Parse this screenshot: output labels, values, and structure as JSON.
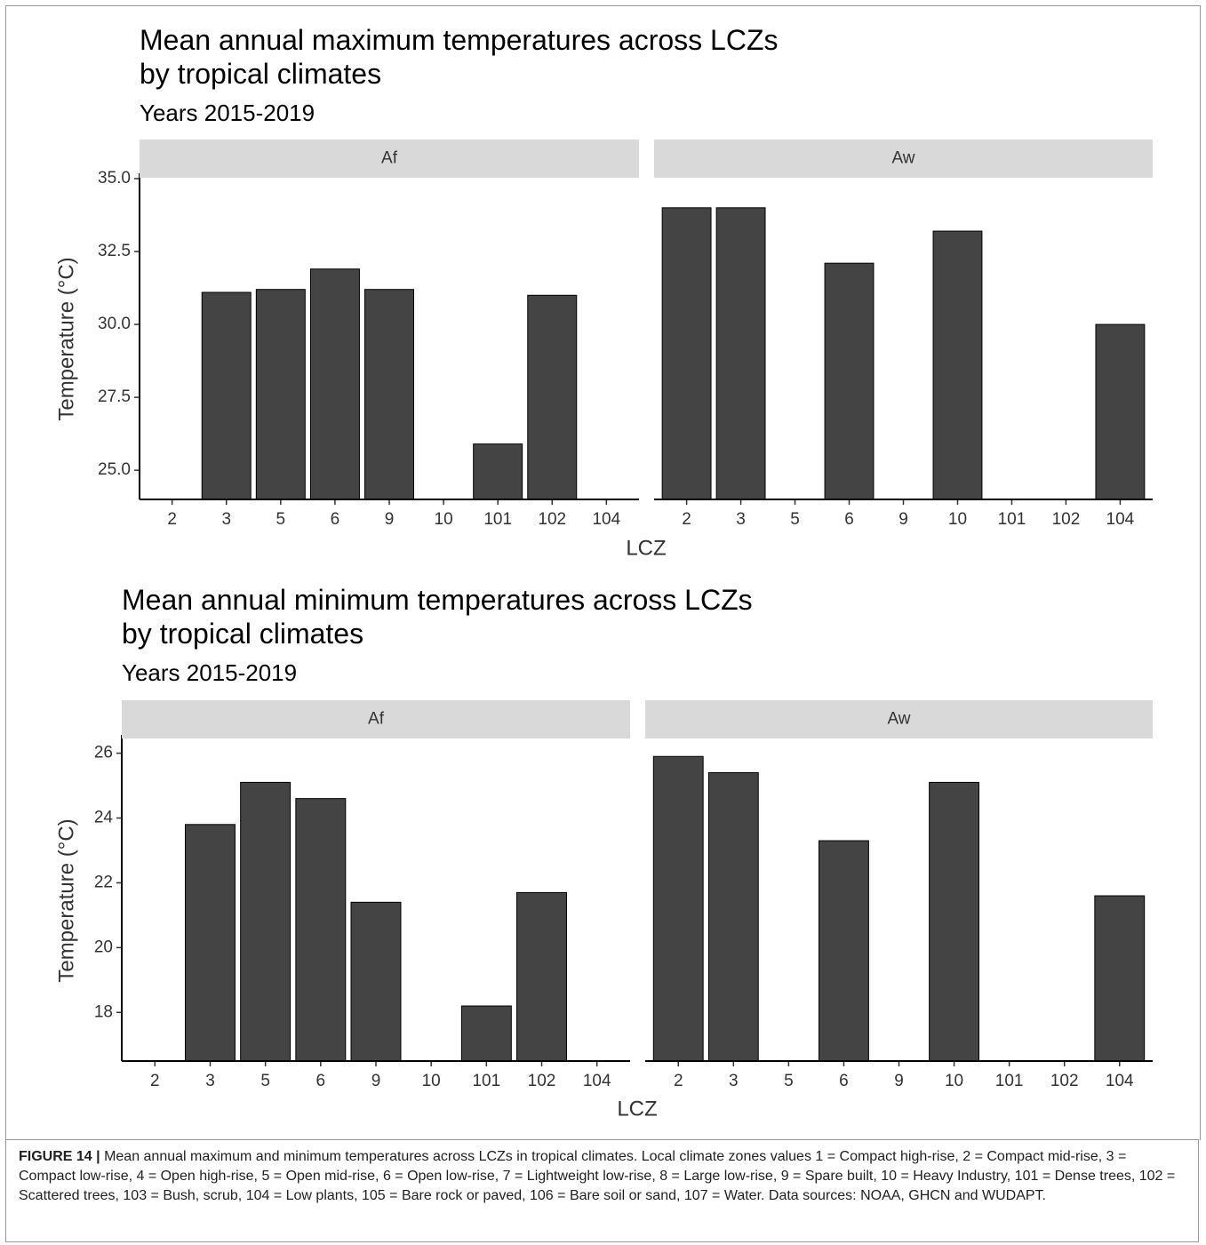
{
  "chart_data": [
    {
      "type": "bar",
      "title": "Mean annual maximum temperatures across LCZs\nby tropical climates",
      "subtitle": "Years 2015-2019",
      "ylabel": "Temperature (°C)",
      "xlabel": "LCZ",
      "color": "#444444",
      "ylim": [
        24,
        35
      ],
      "yticks": [
        {
          "value": 25,
          "label": "25.0"
        },
        27.5,
        {
          "value": 30,
          "label": "30.0"
        },
        32.5,
        {
          "value": 35,
          "label": "35.0"
        }
      ],
      "panels": [
        {
          "label": "Af",
          "categories": [
            "2",
            "3",
            "5",
            "6",
            "9",
            "10",
            "101",
            "102",
            "104"
          ],
          "values": [
            null,
            31.1,
            31.2,
            31.9,
            31.2,
            null,
            25.9,
            31.0,
            null
          ]
        },
        {
          "label": "Aw",
          "categories": [
            "2",
            "3",
            "5",
            "6",
            "9",
            "10",
            "101",
            "102",
            "104"
          ],
          "values": [
            34.0,
            34.0,
            null,
            32.1,
            null,
            33.2,
            null,
            null,
            30.0
          ]
        }
      ]
    },
    {
      "type": "bar",
      "title": "Mean annual minimum temperatures across LCZs\nby tropical climates",
      "subtitle": "Years 2015-2019",
      "ylabel": "Temperature (°C)",
      "xlabel": "LCZ",
      "color": "#444444",
      "ylim": [
        16.5,
        26.4
      ],
      "yticks": [
        18,
        20,
        22,
        24,
        26
      ],
      "panels": [
        {
          "label": "Af",
          "categories": [
            "2",
            "3",
            "5",
            "6",
            "9",
            "10",
            "101",
            "102",
            "104"
          ],
          "values": [
            null,
            23.8,
            25.1,
            24.6,
            21.4,
            null,
            18.2,
            21.7,
            null
          ]
        },
        {
          "label": "Aw",
          "categories": [
            "2",
            "3",
            "5",
            "6",
            "9",
            "10",
            "101",
            "102",
            "104"
          ],
          "values": [
            25.9,
            25.4,
            null,
            23.3,
            null,
            25.1,
            null,
            null,
            21.6
          ]
        }
      ]
    }
  ],
  "caption": {
    "label": "FIGURE 14 |",
    "text": "Mean annual maximum and minimum temperatures across LCZs in tropical climates. Local climate zones values 1 = Compact high-rise, 2 = Compact mid-rise, 3 = Compact low-rise, 4 = Open high-rise, 5 = Open mid-rise, 6 = Open low-rise, 7 = Lightweight low-rise, 8 = Large low-rise, 9 = Spare built, 10 = Heavy Industry, 101 = Dense trees, 102 = Scattered trees, 103 = Bush, scrub, 104 = Low plants, 105 = Bare rock or paved, 106 = Bare soil or sand, 107 = Water. Data sources: NOAA, GHCN and WUDAPT."
  }
}
